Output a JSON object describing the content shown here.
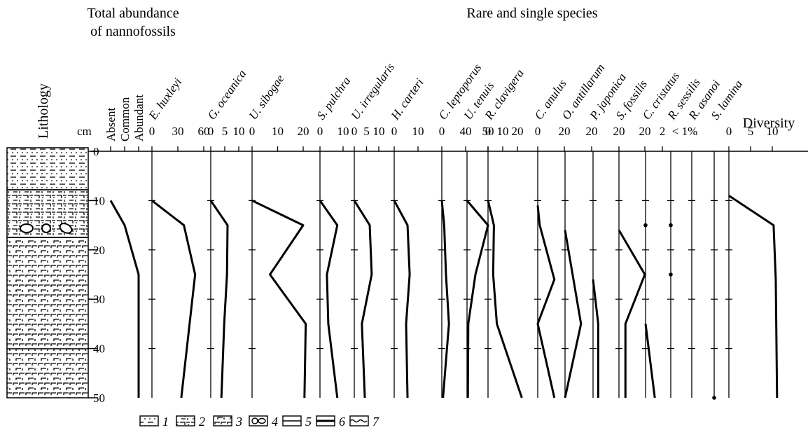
{
  "headers": {
    "total": [
      "Total abundance",
      "of nannofossils"
    ],
    "rare": "Rare and single species"
  },
  "lithology": {
    "label": "Lithology"
  },
  "chart_data": {
    "type": "depth-profile",
    "y_label": "cm",
    "ylim": [
      0,
      50
    ],
    "yticks": [
      0,
      10,
      20,
      30,
      40,
      50
    ],
    "note": "< 1%",
    "panels": [
      {
        "xlim": [
          0,
          2
        ],
        "xticks": [
          {
            "value": 0,
            "label": "Absent"
          },
          {
            "value": 1,
            "label": "Common"
          },
          {
            "value": 2,
            "label": "Abundant"
          }
        ],
        "depth": [
          10,
          15,
          25,
          50
        ],
        "values": [
          0,
          1,
          2,
          2
        ]
      },
      {
        "name": "E. huxleyi",
        "xlim": [
          0,
          60
        ],
        "xticks": [
          0,
          30,
          60
        ],
        "depth": [
          10,
          15,
          25,
          50
        ],
        "values": [
          0,
          37,
          50,
          34
        ]
      },
      {
        "name": "G. oceanica",
        "xlim": [
          0,
          10
        ],
        "xticks": [
          0,
          5,
          10
        ],
        "depth": [
          10,
          15,
          25,
          35,
          50
        ],
        "values": [
          0,
          6,
          5.8,
          4.8,
          3.8
        ]
      },
      {
        "name": "U. sibogae",
        "xlim": [
          0,
          20
        ],
        "xticks": [
          0,
          10,
          20
        ],
        "depth": [
          10,
          15,
          25,
          35,
          50
        ],
        "values": [
          0,
          20,
          7,
          21,
          20.5
        ]
      },
      {
        "name": "S. pulchra",
        "xlim": [
          0,
          10
        ],
        "xticks": [
          0,
          10
        ],
        "depth": [
          10,
          15,
          25,
          35,
          50
        ],
        "values": [
          0,
          7.5,
          3,
          3.6,
          7.5
        ]
      },
      {
        "name": "U. irregularis",
        "xlim": [
          0,
          10
        ],
        "xticks": [
          0,
          5,
          10
        ],
        "depth": [
          10,
          15,
          25,
          35,
          50
        ],
        "values": [
          0,
          6.3,
          7.1,
          3.1,
          4.3
        ]
      },
      {
        "name": "H. carteri",
        "xlim": [
          0,
          10
        ],
        "xticks": [
          0,
          10
        ],
        "depth": [
          10,
          15,
          25,
          35,
          50
        ],
        "values": [
          0,
          5.6,
          6.5,
          5,
          5.6
        ]
      },
      {
        "name": "C. leptoporus",
        "xlim": [
          0,
          40
        ],
        "xticks": [
          0,
          40
        ],
        "depth": [
          10,
          15,
          25,
          35,
          50
        ],
        "values": [
          0,
          4,
          7,
          12,
          2
        ]
      },
      {
        "name": "U. tenuis",
        "xlim": [
          0,
          50
        ],
        "xticks": [
          50
        ],
        "depth": [
          10,
          15,
          25,
          35,
          50
        ],
        "values": [
          0,
          50,
          20,
          3,
          2
        ]
      },
      {
        "name": "R. clavigera",
        "xlim": [
          0,
          20
        ],
        "xticks": [
          0,
          10,
          20
        ],
        "depth": [
          10,
          15,
          25,
          35,
          50
        ],
        "values": [
          0,
          4,
          3.5,
          6,
          23
        ]
      },
      {
        "name": "C. anulus",
        "xlim": [
          0,
          20
        ],
        "xticks": [
          0,
          20
        ],
        "depth": [
          11,
          15,
          26,
          35,
          50
        ],
        "values": [
          0,
          1.5,
          12.5,
          0,
          12.5
        ]
      },
      {
        "name": "O. antillarum",
        "xlim": [
          0,
          20
        ],
        "xticks": [
          20
        ],
        "depth": [
          16,
          35,
          50
        ],
        "values": [
          0,
          12,
          0
        ]
      },
      {
        "name": "P. japonica",
        "xlim": [
          0,
          20
        ],
        "xticks": [
          20
        ],
        "depth": [
          26,
          35,
          50
        ],
        "values": [
          0,
          4,
          4
        ]
      },
      {
        "name": "S. fossilis",
        "xlim": [
          0,
          20
        ],
        "xticks": [
          20
        ],
        "depth": [
          16,
          25,
          35,
          50
        ],
        "values": [
          0,
          20,
          5,
          5
        ]
      },
      {
        "name": "C. cristatus",
        "xlim": [
          0,
          2
        ],
        "xticks": [
          2
        ],
        "depth": [
          35,
          50
        ],
        "values": [
          0,
          1.1
        ],
        "dot_depths": [
          15
        ]
      },
      {
        "name": "R. sessilis",
        "dot_depths": [
          15,
          25
        ]
      },
      {
        "name": "R. asanoi"
      },
      {
        "name": "S. lamina",
        "dot_depths": [
          50
        ]
      },
      {
        "xlabel": "Diversity",
        "xlim": [
          0,
          10
        ],
        "xticks": [
          0,
          5,
          10
        ],
        "depth": [
          9,
          15,
          26,
          50
        ],
        "values": [
          0,
          10.3,
          10.8,
          11.1
        ]
      }
    ]
  },
  "legend": [
    "1",
    "2",
    "3",
    "4",
    "5",
    "6",
    "7"
  ]
}
